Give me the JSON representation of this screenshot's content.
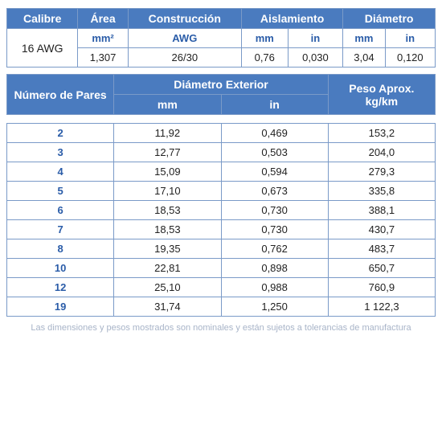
{
  "table1": {
    "headers": {
      "calibre": "Calibre",
      "area": "Área",
      "construccion": "Construcción",
      "aislamiento": "Aislamiento",
      "diametro": "Diámetro"
    },
    "sub": {
      "area_unit": "mm²",
      "construccion_unit": "AWG",
      "aislamiento_mm": "mm",
      "aislamiento_in": "in",
      "diametro_mm": "mm",
      "diametro_in": "in"
    },
    "row": {
      "calibre": "16 AWG",
      "area": "1,307",
      "construccion": "26/30",
      "ais_mm": "0,76",
      "ais_in": "0,030",
      "dia_mm": "3,04",
      "dia_in": "0,120"
    }
  },
  "table2": {
    "headers": {
      "numero": "Número de Pares",
      "dia_ext": "Diámetro Exterior",
      "peso": "Peso Aprox. kg/km",
      "mm": "mm",
      "in": "in"
    },
    "rows": [
      {
        "n": "2",
        "mm": "11,92",
        "in": "0,469",
        "peso": "153,2"
      },
      {
        "n": "3",
        "mm": "12,77",
        "in": "0,503",
        "peso": "204,0"
      },
      {
        "n": "4",
        "mm": "15,09",
        "in": "0,594",
        "peso": "279,3"
      },
      {
        "n": "5",
        "mm": "17,10",
        "in": "0,673",
        "peso": "335,8"
      },
      {
        "n": "6",
        "mm": "18,53",
        "in": "0,730",
        "peso": "388,1"
      },
      {
        "n": "7",
        "mm": "18,53",
        "in": "0,730",
        "peso": "430,7"
      },
      {
        "n": "8",
        "mm": "19,35",
        "in": "0,762",
        "peso": "483,7"
      },
      {
        "n": "10",
        "mm": "22,81",
        "in": "0,898",
        "peso": "650,7"
      },
      {
        "n": "12",
        "mm": "25,10",
        "in": "0,988",
        "peso": "760,9"
      },
      {
        "n": "19",
        "mm": "31,74",
        "in": "1,250",
        "peso": "1 122,3"
      }
    ]
  },
  "footnote": "Las dimensiones y pesos mostrados son nominales y están sujetos a tolerancias de manufactura",
  "colors": {
    "header_bg": "#4a7bbf",
    "header_fg": "#ffffff",
    "border": "#7a9ac8",
    "blue_text": "#2a5ca8",
    "footnote": "#a8b4c8"
  }
}
